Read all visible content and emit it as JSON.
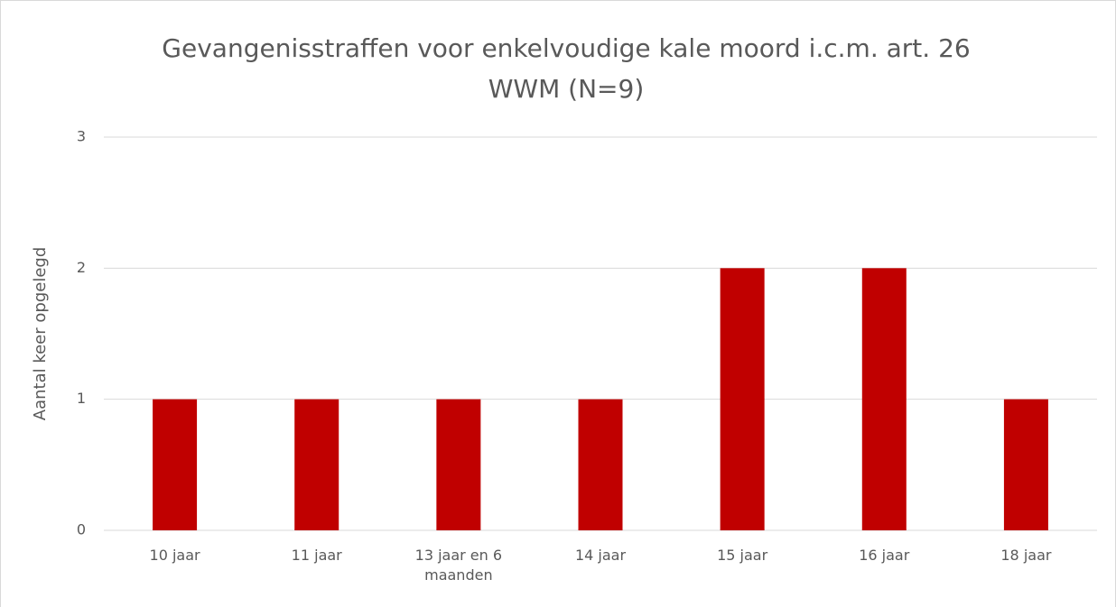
{
  "chart_data": {
    "type": "bar",
    "title": "Gevangenisstraffen voor enkelvoudige kale moord i.c.m. art. 26 WWM (N=9)",
    "y_label": "Aantal keer opgelegd",
    "categories": [
      "10 jaar",
      "11 jaar",
      "13 jaar en 6 maanden",
      "14 jaar",
      "15 jaar",
      "16 jaar",
      "18 jaar"
    ],
    "values": [
      1,
      1,
      1,
      1,
      2,
      2,
      1
    ],
    "color": "#c00000",
    "ylim": [
      0,
      3
    ],
    "yticks": [
      0,
      1,
      2,
      3
    ],
    "grid": true
  }
}
